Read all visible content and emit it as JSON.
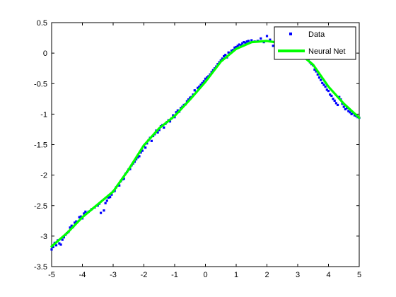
{
  "chart_data": {
    "type": "scatter",
    "title": "",
    "xlabel": "",
    "ylabel": "",
    "xlim": [
      -5,
      5
    ],
    "ylim": [
      -3.5,
      0.5
    ],
    "x_ticks": [
      -5,
      -4,
      -3,
      -2,
      -1,
      0,
      1,
      2,
      3,
      4,
      5
    ],
    "y_ticks": [
      -3.5,
      -3,
      -2.5,
      -2,
      -1.5,
      -1,
      -0.5,
      0,
      0.5
    ],
    "x_tick_labels": [
      "-5",
      "-4",
      "-3",
      "-2",
      "-1",
      "0",
      "1",
      "2",
      "3",
      "4",
      "5"
    ],
    "y_tick_labels": [
      "-3.5",
      "-3",
      "-2.5",
      "-2",
      "-1.5",
      "-1",
      "-0.5",
      "0",
      "0.5"
    ],
    "grid": false,
    "legend_position": "top-right",
    "series": [
      {
        "name": "Data",
        "kind": "scatter",
        "color": "#0000ff",
        "points": [
          [
            -5.0,
            -3.22
          ],
          [
            -4.95,
            -3.18
          ],
          [
            -4.9,
            -3.11
          ],
          [
            -4.85,
            -3.15
          ],
          [
            -4.8,
            -3.07
          ],
          [
            -4.75,
            -3.12
          ],
          [
            -4.7,
            -3.14
          ],
          [
            -4.65,
            -3.06
          ],
          [
            -4.6,
            -3.02
          ],
          [
            -4.55,
            -2.98
          ],
          [
            -4.5,
            -2.95
          ],
          [
            -4.45,
            -2.93
          ],
          [
            -4.4,
            -2.86
          ],
          [
            -4.35,
            -2.83
          ],
          [
            -4.3,
            -2.85
          ],
          [
            -4.25,
            -2.78
          ],
          [
            -4.2,
            -2.76
          ],
          [
            -4.1,
            -2.69
          ],
          [
            -4.05,
            -2.68
          ],
          [
            -4.0,
            -2.71
          ],
          [
            -3.95,
            -2.63
          ],
          [
            -3.9,
            -2.6
          ],
          [
            -3.8,
            -2.6
          ],
          [
            -3.7,
            -2.56
          ],
          [
            -3.6,
            -2.53
          ],
          [
            -3.5,
            -2.5
          ],
          [
            -3.45,
            -2.47
          ],
          [
            -3.4,
            -2.62
          ],
          [
            -3.3,
            -2.58
          ],
          [
            -3.25,
            -2.46
          ],
          [
            -3.2,
            -2.42
          ],
          [
            -3.15,
            -2.37
          ],
          [
            -3.1,
            -2.36
          ],
          [
            -3.05,
            -2.32
          ],
          [
            -3.0,
            -2.27
          ],
          [
            -2.95,
            -2.26
          ],
          [
            -2.9,
            -2.2
          ],
          [
            -2.85,
            -2.17
          ],
          [
            -2.8,
            -2.17
          ],
          [
            -2.75,
            -2.1
          ],
          [
            -2.7,
            -2.07
          ],
          [
            -2.65,
            -2.06
          ],
          [
            -2.6,
            -1.98
          ],
          [
            -2.55,
            -1.95
          ],
          [
            -2.5,
            -1.91
          ],
          [
            -2.45,
            -1.9
          ],
          [
            -2.4,
            -1.84
          ],
          [
            -2.35,
            -1.81
          ],
          [
            -2.3,
            -1.78
          ],
          [
            -2.25,
            -1.74
          ],
          [
            -2.2,
            -1.71
          ],
          [
            -2.15,
            -1.69
          ],
          [
            -2.1,
            -1.63
          ],
          [
            -2.05,
            -1.6
          ],
          [
            -2.0,
            -1.52
          ],
          [
            -1.95,
            -1.55
          ],
          [
            -1.9,
            -1.48
          ],
          [
            -1.85,
            -1.43
          ],
          [
            -1.8,
            -1.39
          ],
          [
            -1.75,
            -1.44
          ],
          [
            -1.7,
            -1.36
          ],
          [
            -1.65,
            -1.33
          ],
          [
            -1.6,
            -1.27
          ],
          [
            -1.55,
            -1.3
          ],
          [
            -1.5,
            -1.26
          ],
          [
            -1.45,
            -1.2
          ],
          [
            -1.4,
            -1.18
          ],
          [
            -1.35,
            -1.22
          ],
          [
            -1.3,
            -1.16
          ],
          [
            -1.25,
            -1.13
          ],
          [
            -1.2,
            -1.1
          ],
          [
            -1.15,
            -1.12
          ],
          [
            -1.1,
            -1.07
          ],
          [
            -1.05,
            -1.02
          ],
          [
            -1.0,
            -1.05
          ],
          [
            -0.95,
            -0.97
          ],
          [
            -0.9,
            -0.94
          ],
          [
            -0.85,
            -0.96
          ],
          [
            -0.8,
            -0.9
          ],
          [
            -0.75,
            -0.88
          ],
          [
            -0.7,
            -0.85
          ],
          [
            -0.65,
            -0.84
          ],
          [
            -0.6,
            -0.79
          ],
          [
            -0.55,
            -0.76
          ],
          [
            -0.5,
            -0.73
          ],
          [
            -0.45,
            -0.72
          ],
          [
            -0.4,
            -0.68
          ],
          [
            -0.35,
            -0.61
          ],
          [
            -0.3,
            -0.64
          ],
          [
            -0.25,
            -0.57
          ],
          [
            -0.2,
            -0.55
          ],
          [
            -0.15,
            -0.52
          ],
          [
            -0.1,
            -0.49
          ],
          [
            -0.05,
            -0.46
          ],
          [
            0.0,
            -0.42
          ],
          [
            0.05,
            -0.4
          ],
          [
            0.1,
            -0.38
          ],
          [
            0.15,
            -0.35
          ],
          [
            0.2,
            -0.31
          ],
          [
            0.25,
            -0.28
          ],
          [
            0.3,
            -0.25
          ],
          [
            0.35,
            -0.22
          ],
          [
            0.4,
            -0.18
          ],
          [
            0.45,
            -0.15
          ],
          [
            0.5,
            -0.12
          ],
          [
            0.55,
            -0.09
          ],
          [
            0.6,
            -0.05
          ],
          [
            0.65,
            -0.03
          ],
          [
            0.7,
            -0.07
          ],
          [
            0.75,
            0.01
          ],
          [
            0.8,
            0.0
          ],
          [
            0.85,
            0.04
          ],
          [
            0.9,
            0.05
          ],
          [
            0.95,
            0.09
          ],
          [
            1.0,
            0.1
          ],
          [
            1.05,
            0.12
          ],
          [
            1.1,
            0.14
          ],
          [
            1.15,
            0.13
          ],
          [
            1.2,
            0.16
          ],
          [
            1.25,
            0.18
          ],
          [
            1.3,
            0.17
          ],
          [
            1.35,
            0.19
          ],
          [
            1.4,
            0.2
          ],
          [
            1.5,
            0.21
          ],
          [
            1.6,
            0.19
          ],
          [
            1.7,
            0.2
          ],
          [
            1.8,
            0.24
          ],
          [
            1.9,
            0.18
          ],
          [
            2.0,
            0.28
          ],
          [
            2.1,
            0.22
          ],
          [
            2.2,
            0.12
          ],
          [
            2.3,
            0.18
          ],
          [
            2.4,
            0.25
          ],
          [
            2.5,
            0.15
          ],
          [
            2.6,
            0.12
          ],
          [
            3.3,
            -0.08
          ],
          [
            3.35,
            -0.12
          ],
          [
            3.4,
            -0.15
          ],
          [
            3.45,
            -0.18
          ],
          [
            3.5,
            -0.2
          ],
          [
            3.55,
            -0.27
          ],
          [
            3.6,
            -0.3
          ],
          [
            3.65,
            -0.35
          ],
          [
            3.7,
            -0.4
          ],
          [
            3.75,
            -0.44
          ],
          [
            3.8,
            -0.49
          ],
          [
            3.85,
            -0.52
          ],
          [
            3.9,
            -0.55
          ],
          [
            3.95,
            -0.6
          ],
          [
            4.0,
            -0.62
          ],
          [
            4.05,
            -0.68
          ],
          [
            4.1,
            -0.7
          ],
          [
            4.15,
            -0.75
          ],
          [
            4.2,
            -0.78
          ],
          [
            4.25,
            -0.82
          ],
          [
            4.3,
            -0.85
          ],
          [
            4.35,
            -0.72
          ],
          [
            4.4,
            -0.76
          ],
          [
            4.45,
            -0.83
          ],
          [
            4.5,
            -0.88
          ],
          [
            4.55,
            -0.92
          ],
          [
            4.6,
            -0.9
          ],
          [
            4.65,
            -0.95
          ],
          [
            4.7,
            -0.97
          ],
          [
            4.75,
            -1.0
          ],
          [
            4.8,
            -0.98
          ],
          [
            4.85,
            -1.02
          ],
          [
            4.9,
            -1.03
          ],
          [
            4.95,
            -1.05
          ],
          [
            5.0,
            -1.06
          ]
        ]
      },
      {
        "name": "Neural Net",
        "kind": "line",
        "color": "#00ff00",
        "points": [
          [
            -5.0,
            -3.17
          ],
          [
            -4.5,
            -2.95
          ],
          [
            -4.0,
            -2.69
          ],
          [
            -3.5,
            -2.48
          ],
          [
            -3.0,
            -2.27
          ],
          [
            -2.5,
            -1.91
          ],
          [
            -2.0,
            -1.51
          ],
          [
            -1.5,
            -1.23
          ],
          [
            -1.0,
            -1.03
          ],
          [
            -0.5,
            -0.76
          ],
          [
            0.0,
            -0.47
          ],
          [
            0.5,
            -0.14
          ],
          [
            1.0,
            0.07
          ],
          [
            1.5,
            0.18
          ],
          [
            2.0,
            0.2
          ],
          [
            2.5,
            0.16
          ],
          [
            3.0,
            0.02
          ],
          [
            3.5,
            -0.19
          ],
          [
            4.0,
            -0.55
          ],
          [
            4.5,
            -0.83
          ],
          [
            5.0,
            -1.06
          ]
        ]
      }
    ]
  }
}
